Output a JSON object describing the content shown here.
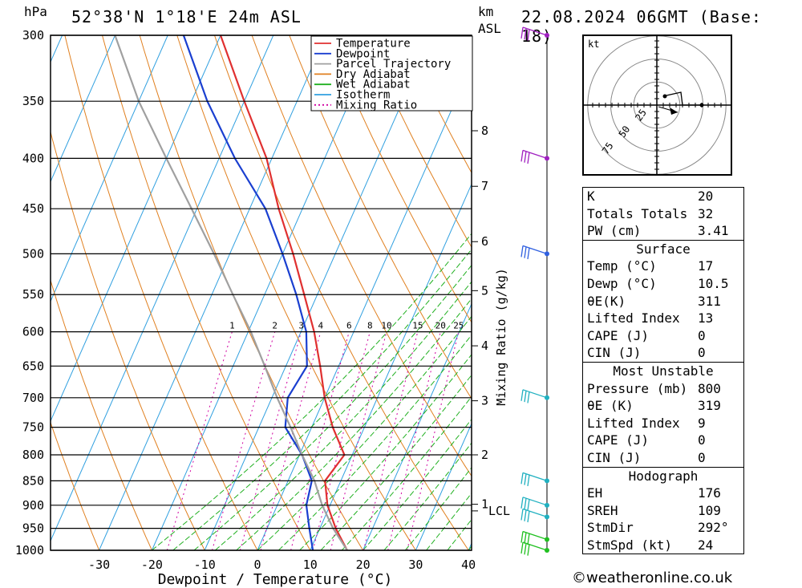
{
  "header": {
    "location": "52°38'N  1°18'E  24m  ASL",
    "datetime": "22.08.2024  06GMT  (Base: 18)",
    "pressure_unit": "hPa",
    "height_unit": "km",
    "height_ref": "ASL"
  },
  "footer": {
    "copyright": "©weatheronline.co.uk"
  },
  "hodograph": {
    "unit": "kt",
    "ring_labels": [
      "25",
      "50",
      "75"
    ]
  },
  "indices": {
    "general": [
      {
        "label": "K",
        "value": "20"
      },
      {
        "label": "Totals Totals",
        "value": "32"
      },
      {
        "label": "PW (cm)",
        "value": "3.41"
      }
    ],
    "surface": {
      "title": "Surface",
      "rows": [
        {
          "label": "Temp (°C)",
          "value": "17"
        },
        {
          "label": "Dewp (°C)",
          "value": "10.5"
        },
        {
          "label": "θE(K)",
          "value": "311"
        },
        {
          "label": "Lifted Index",
          "value": "13"
        },
        {
          "label": "CAPE (J)",
          "value": "0"
        },
        {
          "label": "CIN (J)",
          "value": "0"
        }
      ]
    },
    "most_unstable": {
      "title": "Most Unstable",
      "rows": [
        {
          "label": "Pressure (mb)",
          "value": "800"
        },
        {
          "label": "θE (K)",
          "value": "319"
        },
        {
          "label": "Lifted Index",
          "value": "9"
        },
        {
          "label": "CAPE (J)",
          "value": "0"
        },
        {
          "label": "CIN (J)",
          "value": "0"
        }
      ]
    },
    "hodograph": {
      "title": "Hodograph",
      "rows": [
        {
          "label": "EH",
          "value": "176"
        },
        {
          "label": "SREH",
          "value": "109"
        },
        {
          "label": "StmDir",
          "value": "292°"
        },
        {
          "label": "StmSpd (kt)",
          "value": "24"
        }
      ]
    }
  },
  "chart_data": {
    "type": "line",
    "xlabel": "Dewpoint / Temperature (°C)",
    "ylabel": "hPa",
    "secondary_ylabel": "Mixing Ratio (g/kg)",
    "xlim": [
      -40,
      40
    ],
    "ylim": [
      1000,
      300
    ],
    "x_ticks": [
      -30,
      -20,
      -10,
      0,
      10,
      20,
      30,
      40
    ],
    "pressure_levels": [
      300,
      350,
      400,
      450,
      500,
      550,
      600,
      650,
      700,
      750,
      800,
      850,
      900,
      950,
      1000
    ],
    "km_ticks": [
      {
        "label": "8",
        "p": 375
      },
      {
        "label": "7",
        "p": 427
      },
      {
        "label": "6",
        "p": 486
      },
      {
        "label": "5",
        "p": 545
      },
      {
        "label": "4",
        "p": 620
      },
      {
        "label": "3",
        "p": 705
      },
      {
        "label": "2",
        "p": 800
      },
      {
        "label": "1",
        "p": 898
      }
    ],
    "lcl": {
      "label": "LCL",
      "p": 912
    },
    "mixing_ratio_labels": [
      "1",
      "2",
      "3",
      "4",
      "6",
      "8",
      "10",
      "15",
      "20",
      "25"
    ],
    "mixing_ratio_values": [
      1,
      2,
      3,
      4,
      6,
      8,
      10,
      15,
      20,
      25
    ],
    "legend": {
      "placement": "top",
      "entries": [
        {
          "name": "Temperature",
          "color": "#e03030",
          "dash": "solid"
        },
        {
          "name": "Dewpoint",
          "color": "#1a3fd0",
          "dash": "solid"
        },
        {
          "name": "Parcel Trajectory",
          "color": "#a0a0a0",
          "dash": "solid"
        },
        {
          "name": "Dry Adiabat",
          "color": "#e08020",
          "dash": "solid"
        },
        {
          "name": "Wet Adiabat",
          "color": "#20b020",
          "dash": "solid"
        },
        {
          "name": "Isotherm",
          "color": "#30a0e0",
          "dash": "solid"
        },
        {
          "name": "Mixing Ratio",
          "color": "#d000a0",
          "dash": "dotted"
        }
      ]
    },
    "series": [
      {
        "name": "Temperature",
        "color": "#e03030",
        "points": [
          [
            1000,
            17
          ],
          [
            950,
            13
          ],
          [
            900,
            9.5
          ],
          [
            850,
            7
          ],
          [
            800,
            8.5
          ],
          [
            750,
            4
          ],
          [
            700,
            0
          ],
          [
            650,
            -3.5
          ],
          [
            600,
            -7.5
          ],
          [
            550,
            -12.5
          ],
          [
            500,
            -18
          ],
          [
            450,
            -24.5
          ],
          [
            400,
            -31
          ],
          [
            350,
            -40
          ],
          [
            300,
            -50
          ]
        ]
      },
      {
        "name": "Dewpoint",
        "color": "#1a3fd0",
        "points": [
          [
            1000,
            10.5
          ],
          [
            950,
            8
          ],
          [
            900,
            5.5
          ],
          [
            850,
            4.5
          ],
          [
            800,
            0.5
          ],
          [
            750,
            -5
          ],
          [
            700,
            -7
          ],
          [
            650,
            -6
          ],
          [
            600,
            -9
          ],
          [
            550,
            -14
          ],
          [
            500,
            -20
          ],
          [
            450,
            -27
          ],
          [
            400,
            -37
          ],
          [
            350,
            -47
          ],
          [
            300,
            -57
          ]
        ]
      },
      {
        "name": "Parcel Trajectory",
        "color": "#a0a0a0",
        "points": [
          [
            1000,
            17
          ],
          [
            950,
            12.5
          ],
          [
            900,
            8.5
          ],
          [
            850,
            5
          ],
          [
            800,
            0.5
          ],
          [
            750,
            -4
          ],
          [
            700,
            -9
          ],
          [
            650,
            -14
          ],
          [
            600,
            -19.5
          ],
          [
            550,
            -26
          ],
          [
            500,
            -33
          ],
          [
            450,
            -41
          ],
          [
            400,
            -50
          ],
          [
            350,
            -60
          ],
          [
            300,
            -70
          ]
        ]
      }
    ],
    "wind_barbs": [
      {
        "p": 1000,
        "color": "#20c020"
      },
      {
        "p": 975,
        "color": "#20c020"
      },
      {
        "p": 925,
        "color": "#20b0c0"
      },
      {
        "p": 900,
        "color": "#20b0c0"
      },
      {
        "p": 850,
        "color": "#20b0c0"
      },
      {
        "p": 700,
        "color": "#20b0c0"
      },
      {
        "p": 500,
        "color": "#3060e0"
      },
      {
        "p": 400,
        "color": "#a020c0"
      },
      {
        "p": 300,
        "color": "#a020c0"
      }
    ]
  }
}
